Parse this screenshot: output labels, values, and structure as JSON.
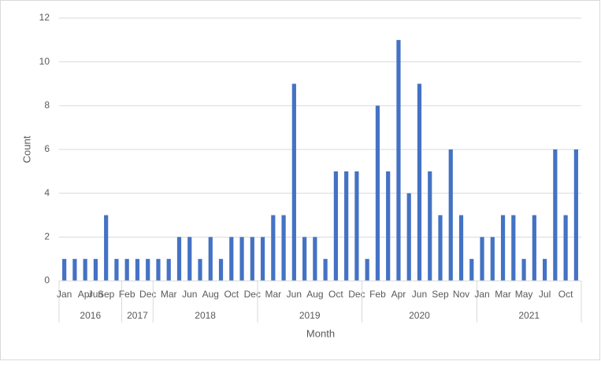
{
  "chart_data": {
    "type": "bar",
    "x_label": "Month",
    "y_label": "Count",
    "color": "#4472c4",
    "ylim": [
      0,
      12
    ],
    "yticks": [
      0,
      2,
      4,
      6,
      8,
      10,
      12
    ],
    "grid": true,
    "groups": [
      {
        "label": "2016",
        "categories": [
          "Jan",
          null,
          "Apr",
          "Jun",
          "Sep",
          null
        ],
        "values": [
          1,
          1,
          1,
          1,
          3,
          1
        ]
      },
      {
        "label": "2017",
        "categories": [
          "Feb",
          null,
          "Dec"
        ],
        "values": [
          1,
          1,
          1
        ]
      },
      {
        "label": "2018",
        "categories": [
          null,
          "Mar",
          null,
          "Jun",
          null,
          "Aug",
          null,
          "Oct",
          null,
          "Dec"
        ],
        "values": [
          1,
          1,
          2,
          2,
          1,
          2,
          1,
          2,
          2,
          2
        ]
      },
      {
        "label": "2019",
        "categories": [
          null,
          "Mar",
          null,
          "Jun",
          null,
          "Aug",
          null,
          "Oct",
          null,
          "Dec"
        ],
        "values": [
          2,
          3,
          3,
          9,
          2,
          2,
          1,
          5,
          5,
          5
        ]
      },
      {
        "label": "2020",
        "categories": [
          null,
          "Feb",
          null,
          "Apr",
          null,
          "Jun",
          null,
          "Sep",
          null,
          "Nov",
          null
        ],
        "values": [
          1,
          8,
          5,
          11,
          4,
          9,
          5,
          3,
          6,
          3,
          1
        ]
      },
      {
        "label": "2021",
        "categories": [
          "Jan",
          null,
          "Mar",
          null,
          "May",
          null,
          "Jul",
          null,
          "Oct",
          null
        ],
        "values": [
          2,
          2,
          3,
          3,
          1,
          3,
          1,
          6,
          3,
          6
        ]
      }
    ]
  }
}
